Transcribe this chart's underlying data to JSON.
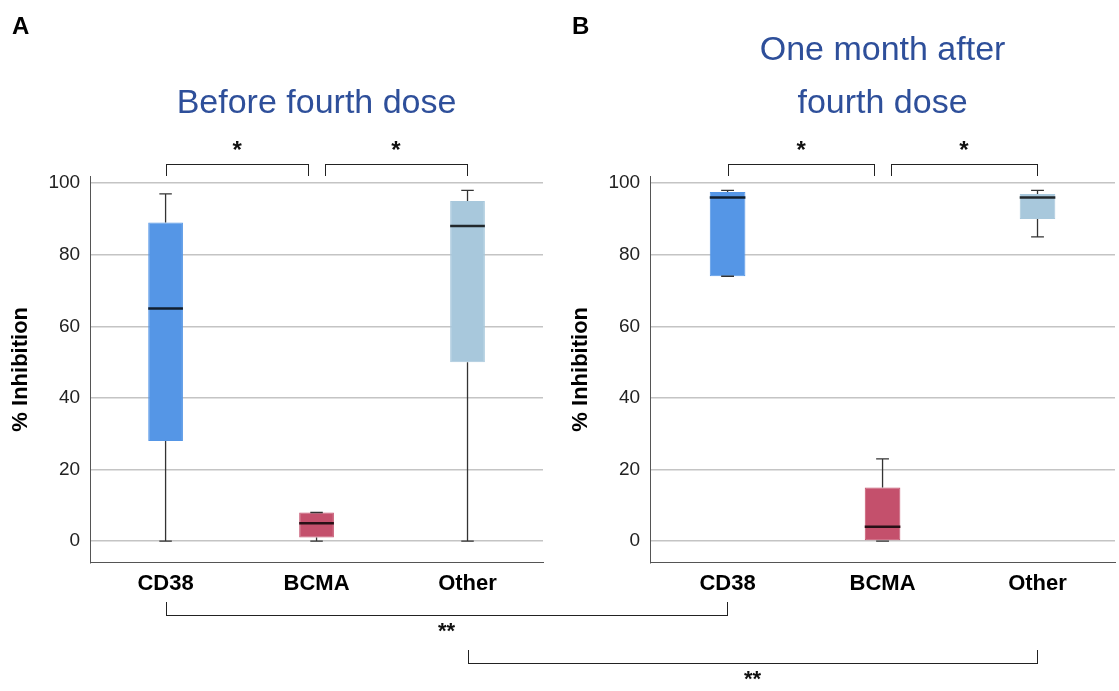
{
  "chart_data": [
    {
      "type": "box",
      "title": "Before fourth dose",
      "ylabel": "% Inhibition",
      "categories": [
        "CD38",
        "BCMA",
        "Other"
      ],
      "boxes": [
        {
          "low": 0,
          "q1": 28,
          "median": 65,
          "q3": 89,
          "high": 97
        },
        {
          "low": 0,
          "q1": 1,
          "median": 5,
          "q3": 8,
          "high": 8
        },
        {
          "low": 0,
          "q1": 50,
          "median": 88,
          "q3": 95,
          "high": 98
        }
      ],
      "colors": [
        "#5596e6",
        "#c4506c",
        "#a8c8dc"
      ],
      "ylim": [
        -6,
        102
      ],
      "yticks": [
        0,
        20,
        40,
        60,
        80,
        100
      ],
      "grid": "y",
      "legend": false,
      "annotations": [
        "A",
        "*",
        "*"
      ]
    },
    {
      "type": "box",
      "title": "One month after fourth dose",
      "ylabel": "% Inhibition",
      "categories": [
        "CD38",
        "BCMA",
        "Other"
      ],
      "boxes": [
        {
          "low": 74,
          "q1": 74,
          "median": 96,
          "q3": 97.5,
          "high": 98
        },
        {
          "low": 0,
          "q1": 0,
          "median": 4,
          "q3": 15,
          "high": 23
        },
        {
          "low": 85,
          "q1": 90,
          "median": 96,
          "q3": 97,
          "high": 98
        }
      ],
      "colors": [
        "#5596e6",
        "#c4506c",
        "#a8c8dc"
      ],
      "ylim": [
        -6,
        102
      ],
      "yticks": [
        0,
        20,
        40,
        60,
        80,
        100
      ],
      "grid": "y",
      "legend": false,
      "annotations": [
        "B",
        "*",
        "*",
        "**",
        "**"
      ]
    }
  ]
}
